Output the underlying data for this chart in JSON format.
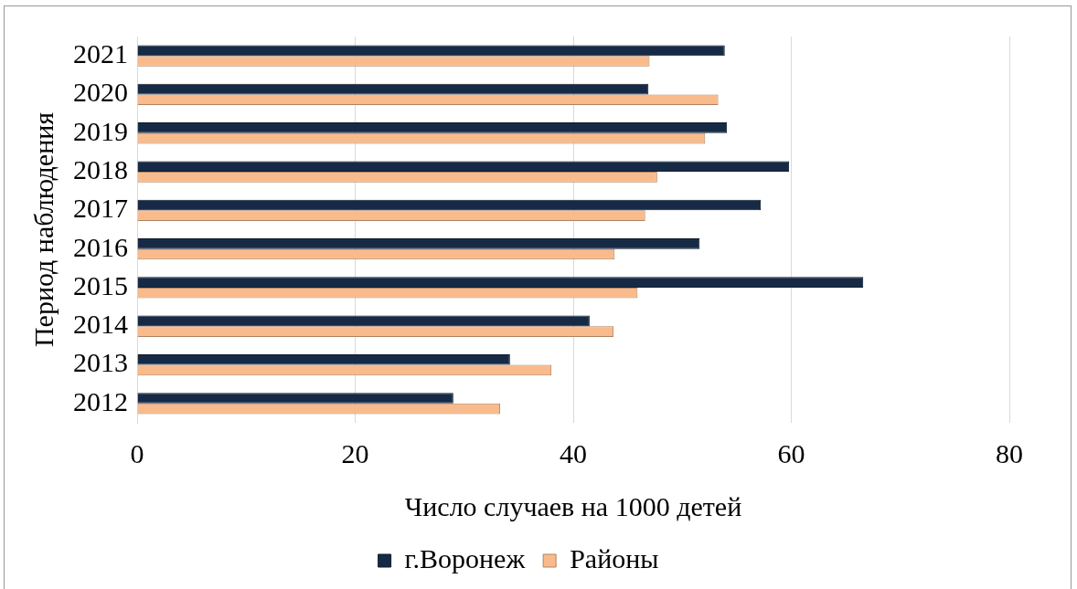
{
  "chart_data": {
    "type": "bar",
    "orientation": "horizontal",
    "xlabel": "Число случаев на 1000 детей",
    "ylabel": "Период наблюдения",
    "categories": [
      "2021",
      "2020",
      "2019",
      "2018",
      "2017",
      "2016",
      "2015",
      "2014",
      "2013",
      "2012"
    ],
    "series": [
      {
        "name": "г.Воронеж",
        "color": "#172a45",
        "values": [
          53.9,
          46.9,
          54.1,
          59.8,
          57.2,
          51.6,
          66.6,
          41.5,
          34.2,
          29.0
        ]
      },
      {
        "name": "Районы",
        "color": "#f9bb8c",
        "values": [
          47.0,
          53.3,
          52.1,
          47.7,
          46.6,
          43.8,
          45.9,
          43.7,
          38.0,
          33.3
        ]
      }
    ],
    "xlim": [
      0,
      80
    ],
    "xticks": [
      0,
      20,
      40,
      60,
      80
    ],
    "grid": "x",
    "legend": "bottom"
  }
}
